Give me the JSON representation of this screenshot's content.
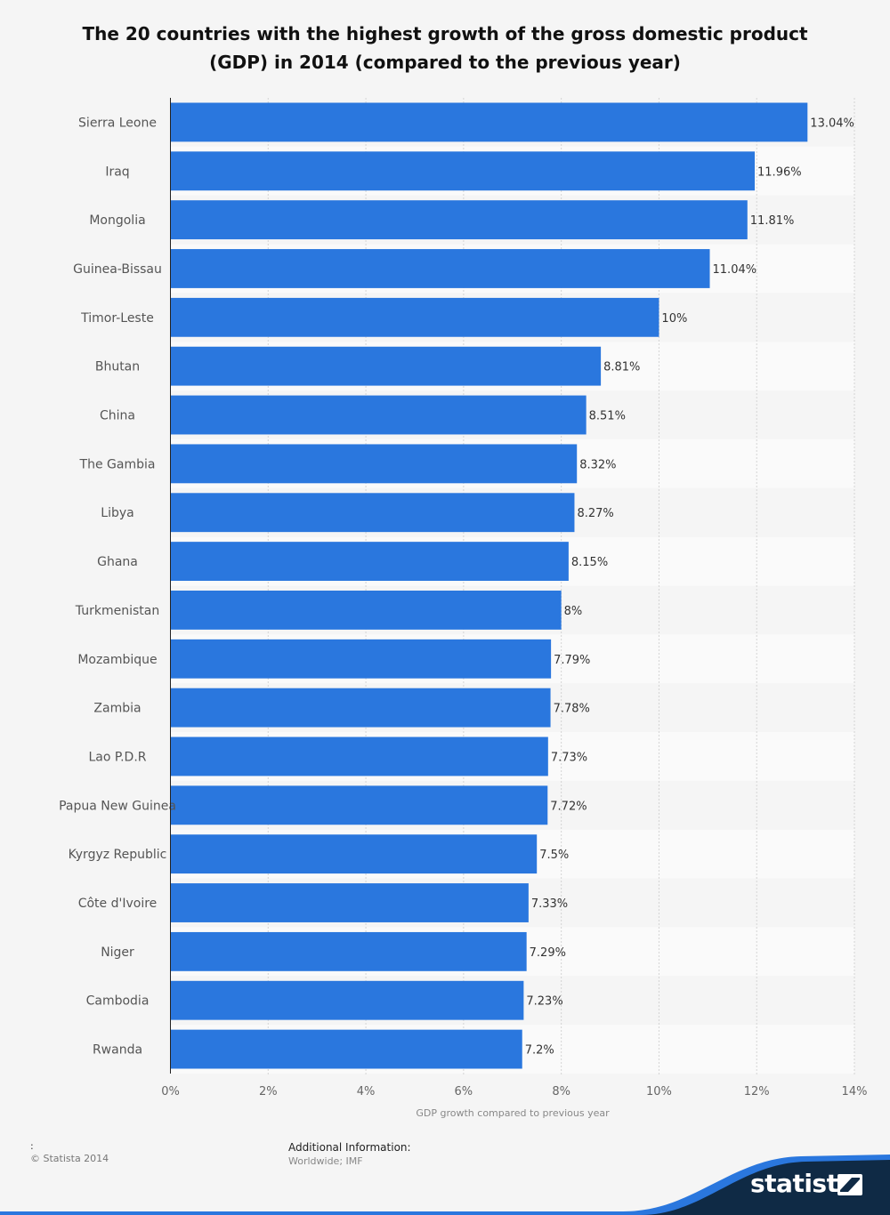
{
  "chart_data": {
    "type": "bar",
    "orientation": "horizontal",
    "title": "The 20 countries with the highest growth of the gross domestic product (GDP) in 2014 (compared to the previous year)",
    "xlabel": "GDP growth compared to previous year",
    "ylabel": "",
    "xlim": [
      0,
      14
    ],
    "ticks": [
      "0%",
      "2%",
      "4%",
      "6%",
      "8%",
      "10%",
      "12%",
      "14%"
    ],
    "tick_values": [
      0,
      2,
      4,
      6,
      8,
      10,
      12,
      14
    ],
    "grid": true,
    "bar_color": "#2a77de",
    "categories": [
      "Sierra Leone",
      "Iraq",
      "Mongolia",
      "Guinea-Bissau",
      "Timor-Leste",
      "Bhutan",
      "China",
      "The Gambia",
      "Libya",
      "Ghana",
      "Turkmenistan",
      "Mozambique",
      "Zambia",
      "Lao P.D.R",
      "Papua New Guinea",
      "Kyrgyz Republic",
      "Côte d'Ivoire",
      "Niger",
      "Cambodia",
      "Rwanda"
    ],
    "values": [
      13.04,
      11.96,
      11.81,
      11.04,
      10,
      8.81,
      8.51,
      8.32,
      8.27,
      8.15,
      8,
      7.79,
      7.78,
      7.73,
      7.72,
      7.5,
      7.33,
      7.29,
      7.23,
      7.2
    ],
    "value_labels": [
      "13.04%",
      "11.96%",
      "11.81%",
      "11.04%",
      "10%",
      "8.81%",
      "8.51%",
      "8.32%",
      "8.27%",
      "8.15%",
      "8%",
      "7.79%",
      "7.78%",
      "7.73%",
      "7.72%",
      "7.5%",
      "7.33%",
      "7.29%",
      "7.23%",
      "7.2%"
    ]
  },
  "footer": {
    "source_colon": ":",
    "copyright": "© Statista 2014",
    "additional_title": "Additional Information:",
    "additional_text": "Worldwide; IMF",
    "brand": "statista"
  },
  "colors": {
    "background": "#f5f5f5",
    "band_alt": "#fafafa",
    "footer_dark": "#0f2a45",
    "footer_accent": "#2a77de"
  }
}
